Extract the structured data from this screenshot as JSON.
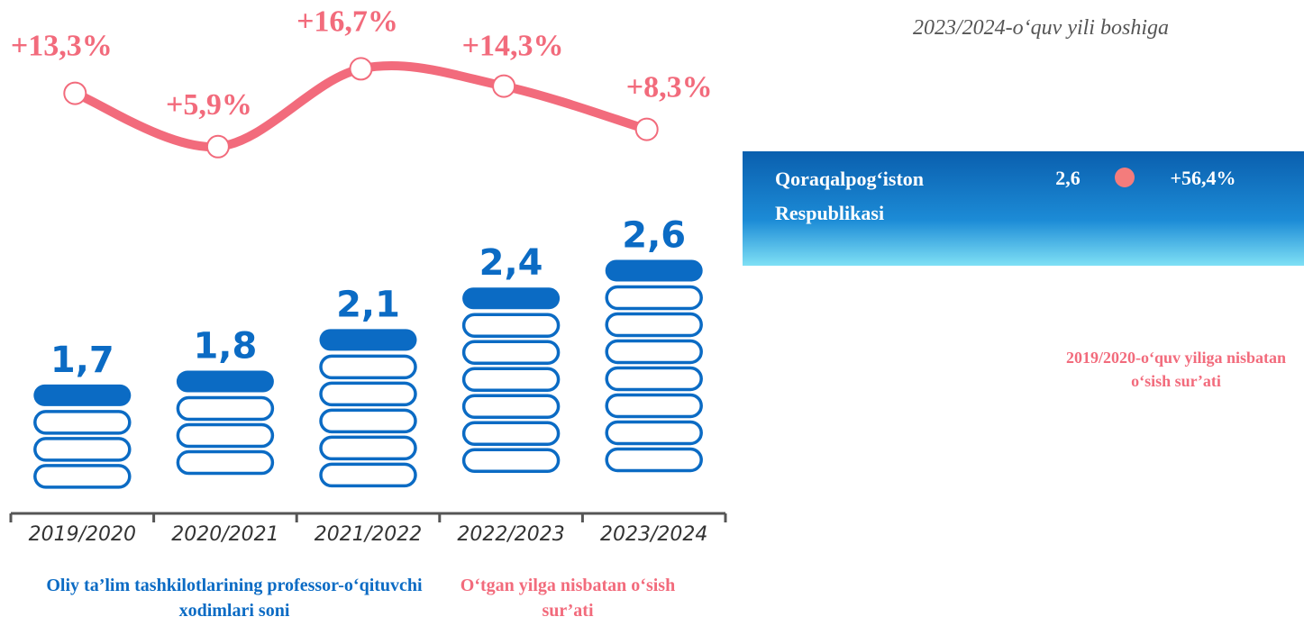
{
  "chart_data": {
    "type": "bar",
    "categories": [
      "2019/2020",
      "2020/2021",
      "2021/2022",
      "2022/2023",
      "2023/2024"
    ],
    "ylim": [
      0.9,
      2.85
    ],
    "y2lim": [
      -5,
      20
    ],
    "series": [
      {
        "name": "Oliy ta’lim tashkilotlarining professor-o‘qituvchi xodimlari soni",
        "color": "#0b6bc4",
        "values": [
          1.7,
          1.8,
          2.1,
          2.4,
          2.6
        ],
        "value_labels": [
          "1,7",
          "1,8",
          "2,1",
          "2,4",
          "2,6"
        ]
      },
      {
        "name": "O‘tgan yilga nisbatan o‘sish sur’ati",
        "color": "#f26b7c",
        "type": "line",
        "axis": "y2",
        "values": [
          13.3,
          5.9,
          16.7,
          14.3,
          8.3
        ],
        "value_labels": [
          "+13,3%",
          "+5,9%",
          "+16,7%",
          "+14,3%",
          "+8,3%"
        ]
      }
    ]
  },
  "panel": {
    "note": "2023/2024-o‘quv yili boshiga",
    "region": "Qoraqalpog‘iston Respublikasi",
    "value": "2,6",
    "growth": "+56,4%",
    "growth_note": "2019/2020-o‘quv yiliga nisbatan o‘sish sur’ati"
  }
}
